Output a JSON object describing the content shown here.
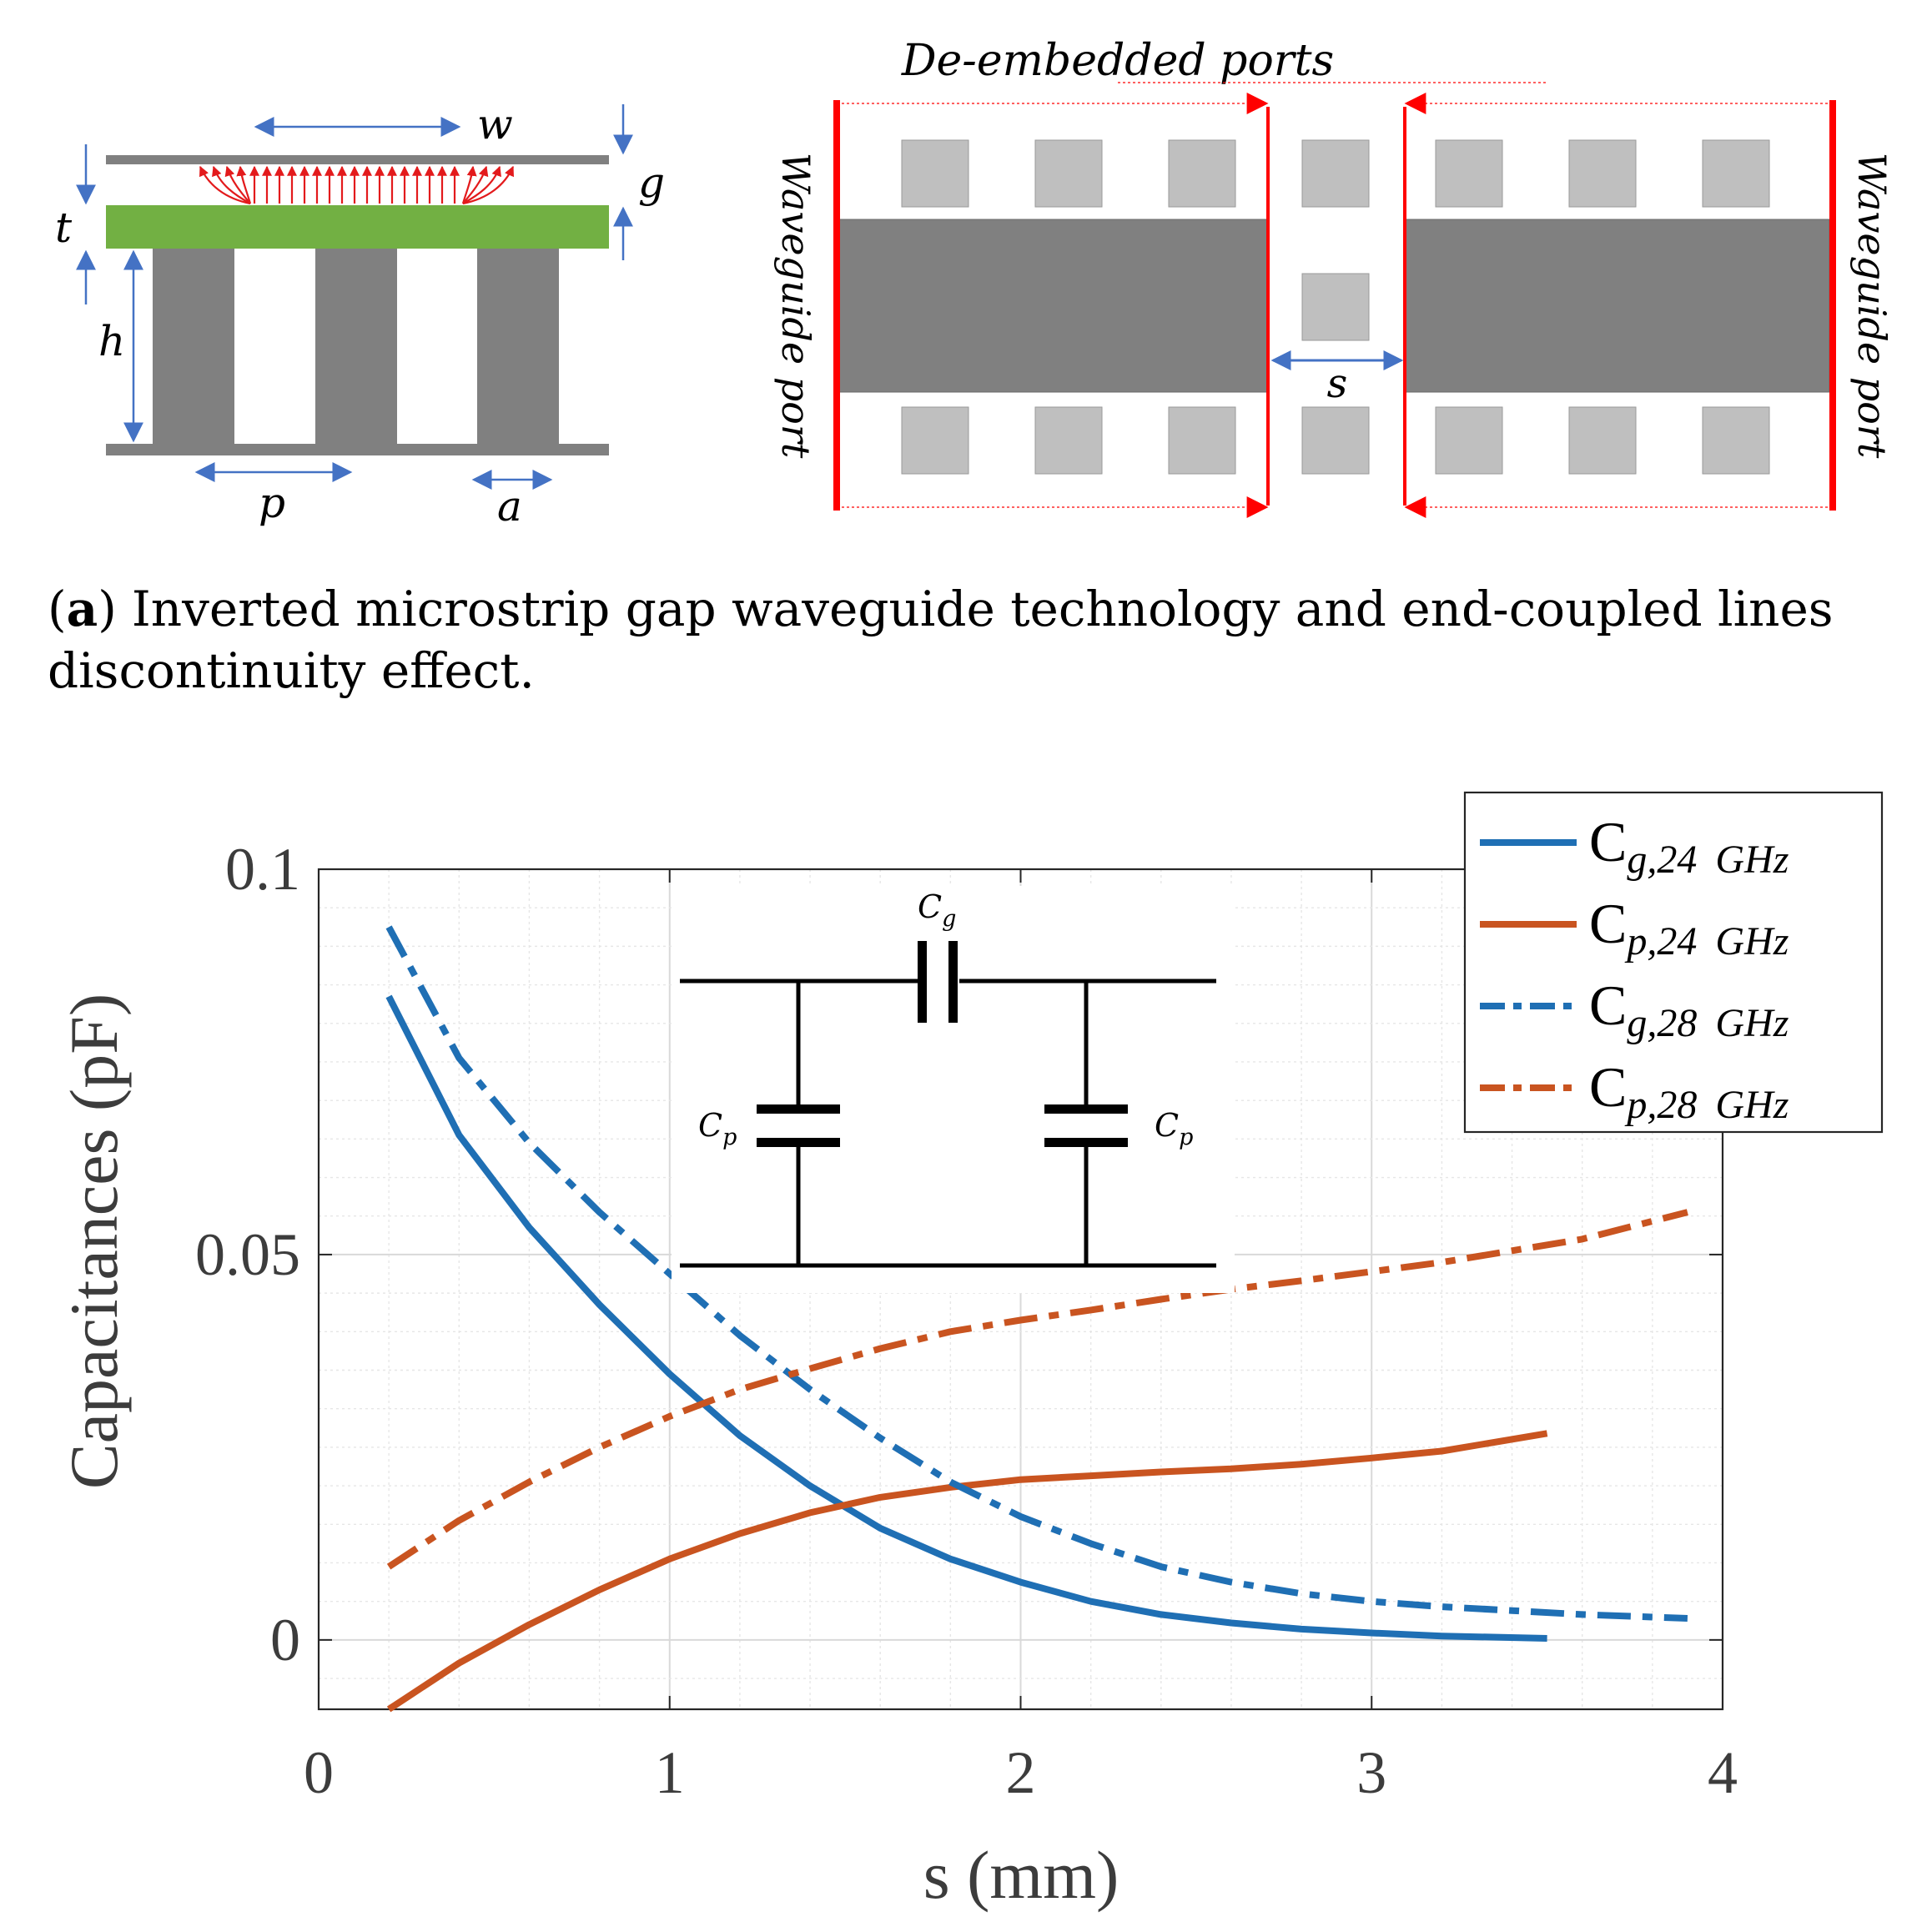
{
  "top_figure": {
    "cross_section": {
      "labels": {
        "w": "w",
        "g": "g",
        "t": "t",
        "h": "h",
        "p": "p",
        "a": "a"
      },
      "colors": {
        "metal": "#808080",
        "substrate": "#72b043",
        "arrow": "#4472c4",
        "field": "#e31a1c"
      }
    },
    "top_view": {
      "de_embedded_label": "De-embedded ports",
      "port_left_label": "Waveguide port",
      "port_right_label": "Waveguide port",
      "gap_label": "s",
      "colors": {
        "line": "#808080",
        "pin": "#bfbfbf",
        "port": "#ff0000"
      }
    },
    "caption_tag": "(a)",
    "caption_tag_letter": "a",
    "caption_text_line1": "Inverted microstrip gap waveguide technology and end-coupled lines",
    "caption_text_line2": "discontinuity effect."
  },
  "inset_circuit": {
    "cg_main": "C",
    "cg_sub": "g",
    "cp_main": "C",
    "cp_sub": "p"
  },
  "chart_data": {
    "type": "line",
    "xlabel": "s (mm)",
    "ylabel": "Capacitances (pF)",
    "xlim": [
      0,
      4
    ],
    "ylim": [
      -0.009,
      0.1
    ],
    "xticks": [
      "0",
      "1",
      "2",
      "3",
      "4"
    ],
    "yticks": [
      "0",
      "0.05",
      "0.1"
    ],
    "grid": true,
    "legend_position": "top-right",
    "series": [
      {
        "name": "Cg,24 GHz",
        "name_main": "C",
        "name_sub": "g,24",
        "name_unit": "GHz",
        "color": "#1f6fb4",
        "dash": "solid",
        "x": [
          0.2,
          0.4,
          0.6,
          0.8,
          1.0,
          1.2,
          1.4,
          1.6,
          1.8,
          2.0,
          2.2,
          2.4,
          2.6,
          2.8,
          3.0,
          3.2,
          3.5
        ],
        "y": [
          0.0835,
          0.0655,
          0.0535,
          0.0435,
          0.0345,
          0.0265,
          0.02,
          0.0145,
          0.0105,
          0.0075,
          0.005,
          0.0033,
          0.0022,
          0.0014,
          0.0009,
          0.0005,
          0.0002
        ]
      },
      {
        "name": "Cp,24 GHz",
        "name_main": "C",
        "name_sub": "p,24",
        "name_unit": "GHz",
        "color": "#c95420",
        "dash": "solid",
        "x": [
          0.2,
          0.4,
          0.6,
          0.8,
          1.0,
          1.2,
          1.4,
          1.6,
          1.8,
          2.0,
          2.2,
          2.4,
          2.6,
          2.8,
          3.0,
          3.2,
          3.5
        ],
        "y": [
          -0.009,
          -0.003,
          0.002,
          0.0065,
          0.0105,
          0.0138,
          0.0165,
          0.0185,
          0.0198,
          0.0208,
          0.0213,
          0.0218,
          0.0222,
          0.0228,
          0.0236,
          0.0245,
          0.0268
        ]
      },
      {
        "name": "Cg,28 GHz",
        "name_main": "C",
        "name_sub": "g,28",
        "name_unit": "GHz",
        "color": "#1f6fb4",
        "dash": "dashdot",
        "x": [
          0.2,
          0.4,
          0.6,
          0.8,
          1.0,
          1.2,
          1.4,
          1.6,
          1.8,
          2.0,
          2.2,
          2.4,
          2.6,
          2.8,
          3.0,
          3.2,
          3.4,
          3.6,
          3.9
        ],
        "y": [
          0.0925,
          0.0755,
          0.0645,
          0.0555,
          0.0475,
          0.0395,
          0.0325,
          0.0262,
          0.0205,
          0.016,
          0.0125,
          0.0095,
          0.0075,
          0.006,
          0.005,
          0.0043,
          0.0038,
          0.0033,
          0.0028
        ]
      },
      {
        "name": "Cp,28 GHz",
        "name_main": "C",
        "name_sub": "p,28",
        "name_unit": "GHz",
        "color": "#c95420",
        "dash": "dashdot",
        "x": [
          0.2,
          0.4,
          0.6,
          0.8,
          1.0,
          1.2,
          1.4,
          1.6,
          1.8,
          2.0,
          2.2,
          2.4,
          2.6,
          2.8,
          3.0,
          3.2,
          3.4,
          3.6,
          3.9
        ],
        "y": [
          0.0095,
          0.0155,
          0.0205,
          0.025,
          0.029,
          0.0325,
          0.0352,
          0.0378,
          0.04,
          0.0415,
          0.0428,
          0.0442,
          0.0455,
          0.0466,
          0.0478,
          0.049,
          0.0505,
          0.052,
          0.0555
        ]
      }
    ]
  }
}
